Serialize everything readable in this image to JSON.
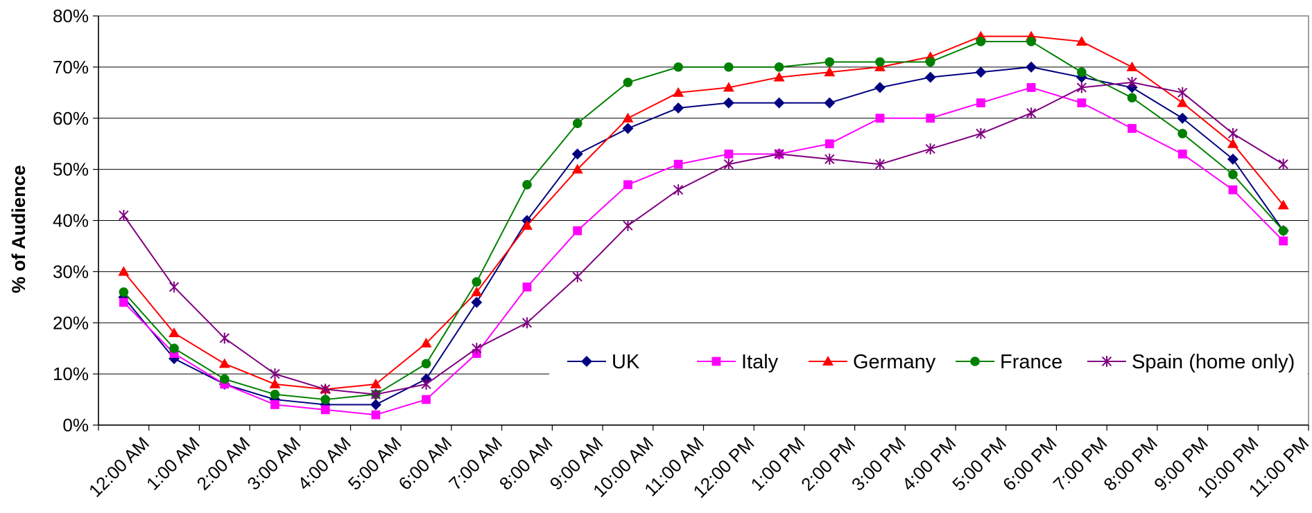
{
  "chart_data": {
    "type": "line",
    "title": "",
    "xlabel": "",
    "ylabel": "% of Audience",
    "ylim": [
      0,
      80
    ],
    "y_unit": "%",
    "y_ticks": [
      0,
      10,
      20,
      30,
      40,
      50,
      60,
      70,
      80
    ],
    "grid": "horizontal",
    "legend_position": "inside-lower-right",
    "categories": [
      "12:00 AM",
      "1:00 AM",
      "2:00 AM",
      "3:00 AM",
      "4:00 AM",
      "5:00 AM",
      "6:00 AM",
      "7:00 AM",
      "8:00 AM",
      "9:00 AM",
      "10:00 AM",
      "11:00 AM",
      "12:00 PM",
      "1:00 PM",
      "2:00 PM",
      "3:00 PM",
      "4:00 PM",
      "5:00 PM",
      "6:00 PM",
      "7:00 PM",
      "8:00 PM",
      "9:00 PM",
      "10:00 PM",
      "11:00 PM"
    ],
    "series": [
      {
        "name": "UK",
        "color": "#000080",
        "marker": "diamond",
        "values": [
          25,
          13,
          8,
          5,
          4,
          4,
          9,
          24,
          40,
          53,
          58,
          62,
          63,
          63,
          63,
          66,
          68,
          69,
          70,
          68,
          66,
          60,
          52,
          38
        ]
      },
      {
        "name": "Italy",
        "color": "#ff00ff",
        "marker": "square",
        "values": [
          24,
          14,
          8,
          4,
          3,
          2,
          5,
          14,
          27,
          38,
          47,
          51,
          53,
          53,
          55,
          60,
          60,
          63,
          66,
          63,
          58,
          53,
          46,
          36
        ]
      },
      {
        "name": "Germany",
        "color": "#ff0000",
        "marker": "triangle",
        "values": [
          30,
          18,
          12,
          8,
          7,
          8,
          16,
          26,
          39,
          50,
          60,
          65,
          66,
          68,
          69,
          70,
          72,
          76,
          76,
          75,
          70,
          63,
          55,
          43
        ]
      },
      {
        "name": "France",
        "color": "#008000",
        "marker": "circle",
        "values": [
          26,
          15,
          9,
          6,
          5,
          6,
          12,
          28,
          47,
          59,
          67,
          70,
          70,
          70,
          71,
          71,
          71,
          75,
          75,
          69,
          64,
          57,
          49,
          38
        ]
      },
      {
        "name": "Spain (home only)",
        "color": "#800080",
        "marker": "star",
        "values": [
          41,
          27,
          17,
          10,
          7,
          6,
          8,
          15,
          20,
          29,
          39,
          46,
          51,
          53,
          52,
          51,
          54,
          57,
          61,
          66,
          67,
          65,
          57,
          51
        ]
      }
    ]
  }
}
